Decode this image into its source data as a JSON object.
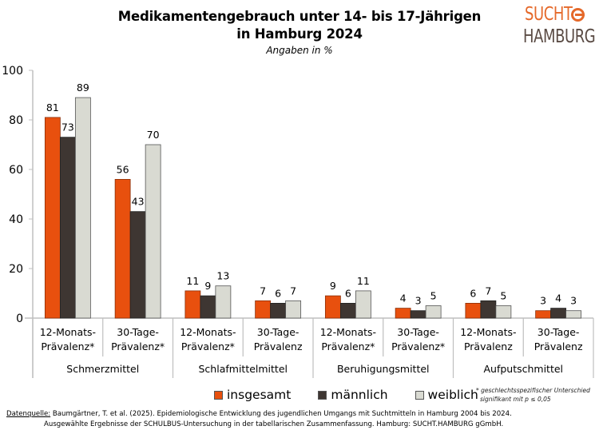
{
  "header": {
    "title_line1": "Medikamentengebrauch unter 14- bis 17-Jährigen",
    "title_line2": "in Hamburg 2024",
    "subtitle": "Angaben in %"
  },
  "logo": {
    "line1": "SUCHT",
    "line2": "HAMBURG"
  },
  "colors": {
    "insgesamt": "#e8500e",
    "maennlich": "#3e3632",
    "weiblich": "#d9dad2",
    "axis": "#bfbfbf"
  },
  "legend": {
    "items": [
      {
        "label": "insgesamt",
        "color": "#e8500e"
      },
      {
        "label": "männlich",
        "color": "#3e3632"
      },
      {
        "label": "weiblich",
        "color": "#d9dad2"
      }
    ]
  },
  "footnote": {
    "line1": "* geschlechtsspezifischer Unterschied",
    "line2": "signifikant mit p ≤ 0,05"
  },
  "source": {
    "label": "Datenquelle:",
    "line1": " Baumgärtner, T. et al. (2025). Epidemiologische Entwicklung des jugendlichen Umgangs mit Suchtmitteln in Hamburg 2004 bis 2024.",
    "line2": "Ausgewählte Ergebnisse der SCHULBUS-Untersuchung in der tabellarischen Zusammenfassung. Hamburg: SUCHT.HAMBURG gGmbH."
  },
  "chart_data": {
    "type": "bar",
    "title": "Medikamentengebrauch unter 14- bis 17-Jährigen in Hamburg 2024",
    "subtitle": "Angaben in %",
    "xlabel": "",
    "ylabel": "",
    "ylim": [
      0,
      100
    ],
    "yticks": [
      0,
      20,
      40,
      60,
      80,
      100
    ],
    "grid": false,
    "legend_position": "bottom",
    "groups": [
      {
        "label": "Schmerzmittel",
        "categories": [
          0,
          1
        ]
      },
      {
        "label": "Schlafmittelmittel",
        "categories": [
          2,
          3
        ]
      },
      {
        "label": "Beruhigungsmittel",
        "categories": [
          4,
          5
        ]
      },
      {
        "label": "Aufputschmittel",
        "categories": [
          6,
          7
        ]
      }
    ],
    "categories": [
      [
        "12-Monats-",
        "Prävalenz*"
      ],
      [
        "30-Tage-",
        "Prävalenz*"
      ],
      [
        "12-Monats-",
        "Prävalenz*"
      ],
      [
        "30-Tage-",
        "Prävalenz"
      ],
      [
        "12-Monats-",
        "Prävalenz*"
      ],
      [
        "30-Tage-",
        "Prävalenz*"
      ],
      [
        "12-Monats-",
        "Prävalenz"
      ],
      [
        "30-Tage-",
        "Prävalenz"
      ]
    ],
    "series": [
      {
        "name": "insgesamt",
        "values": [
          81,
          56,
          11,
          7,
          9,
          4,
          6,
          3
        ]
      },
      {
        "name": "männlich",
        "values": [
          73,
          43,
          9,
          6,
          6,
          3,
          7,
          4
        ]
      },
      {
        "name": "weiblich",
        "values": [
          89,
          70,
          13,
          7,
          11,
          5,
          5,
          3
        ]
      }
    ]
  }
}
